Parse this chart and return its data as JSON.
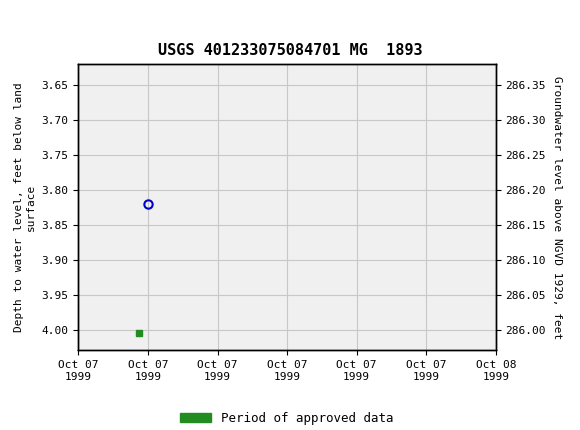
{
  "title": "USGS 401233075084701 MG  1893",
  "header_color": "#1a6e3c",
  "bg_color": "#ffffff",
  "grid_color": "#c8c8c8",
  "plot_bg_color": "#f0f0f0",
  "ylabel_left": "Depth to water level, feet below land\nsurface",
  "ylabel_right": "Groundwater level above NGVD 1929, feet",
  "ylim_left": [
    3.62,
    4.03
  ],
  "y_ticks_left": [
    3.65,
    3.7,
    3.75,
    3.8,
    3.85,
    3.9,
    3.95,
    4.0
  ],
  "y_ticks_right": [
    286.35,
    286.3,
    286.25,
    286.2,
    286.15,
    286.1,
    286.05,
    286.0
  ],
  "data_point_x_hours": 4.0,
  "data_point_y": 3.82,
  "data_point_color": "#0000cc",
  "approved_x_hours": 3.5,
  "approved_y": 4.005,
  "approved_color": "#228b22",
  "xmin_hours": 0,
  "xmax_hours": 24,
  "x_tick_hours": [
    0,
    4,
    8,
    12,
    16,
    20,
    24
  ],
  "x_tick_labels": [
    "Oct 07\n1999",
    "Oct 07\n1999",
    "Oct 07\n1999",
    "Oct 07\n1999",
    "Oct 07\n1999",
    "Oct 07\n1999",
    "Oct 08\n1999"
  ],
  "legend_label": "Period of approved data",
  "legend_color": "#228b22",
  "font_family": "monospace",
  "title_fontsize": 11,
  "tick_fontsize": 8,
  "label_fontsize": 8
}
